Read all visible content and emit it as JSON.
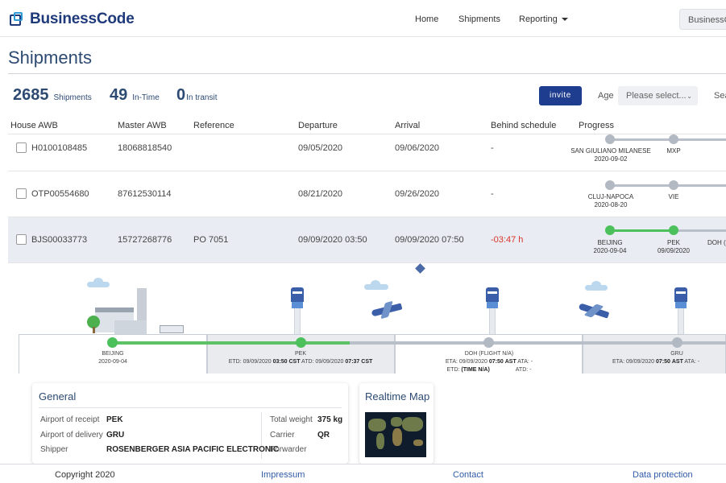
{
  "brand": {
    "name": "BusinessCode"
  },
  "nav": {
    "home": "Home",
    "shipments": "Shipments",
    "reporting": "Reporting",
    "account": "BusinessCode"
  },
  "page": {
    "title": "Shipments"
  },
  "stats": [
    {
      "value": "2685",
      "label": "Shipments"
    },
    {
      "value": "49",
      "label": "In-Time"
    },
    {
      "value": "0",
      "label": "In transit"
    }
  ],
  "toolbar": {
    "invite": "invite",
    "age_label": "Age",
    "age_placeholder": "Please select...",
    "search_label": "Sea"
  },
  "table": {
    "headers": [
      "House AWB",
      "Master AWB",
      "Reference",
      "Departure",
      "Arrival",
      "Behind schedule",
      "Progress"
    ],
    "rows": [
      {
        "house": "H0100108485",
        "master": "18068818540",
        "reference": "",
        "departure": "09/05/2020",
        "arrival": "09/06/2020",
        "behind": "-",
        "stops": [
          {
            "name": "SAN GIULIANO MILANESE",
            "date": "2020-09-02"
          },
          {
            "name": "MXP",
            "date": ""
          }
        ]
      },
      {
        "house": "OTP00554680",
        "master": "87612530114",
        "reference": "",
        "departure": "08/21/2020",
        "arrival": "09/26/2020",
        "behind": "-",
        "stops": [
          {
            "name": "CLUJ-NAPOCA",
            "date": "2020-08-20"
          },
          {
            "name": "VIE",
            "date": ""
          }
        ]
      },
      {
        "house": "BJS00033773",
        "master": "15727268776",
        "reference": "PO 7051",
        "departure": "09/09/2020 03:50",
        "arrival": "09/09/2020 07:50",
        "behind": "-03:47 h",
        "stops": [
          {
            "name": "BEIJING",
            "date": "2020-09-04"
          },
          {
            "name": "PEK",
            "date": "09/09/2020"
          },
          {
            "name": "DOH (",
            "date": ""
          }
        ]
      }
    ]
  },
  "timeline": {
    "beijing": {
      "name": "BEIJING",
      "date": "2020-09-04"
    },
    "pek": {
      "name": "PEK",
      "etd_label": "ETD: 09/09/2020",
      "etd_time": "03:50",
      "etd_tz": "CST",
      "atd_label": "ATD: 09/09/2020",
      "atd_time": "07:37",
      "atd_tz": "CST"
    },
    "doh": {
      "name": "DOH (FLIGHT N/A)",
      "eta_label": "ETA: 09/09/2020",
      "eta_time": "07:50",
      "eta_tz": "AST",
      "ata_label": "ATA: -",
      "etd_label": "ETD:",
      "etd_val": "(TIME N/A)",
      "atd_label": "ATD: -"
    },
    "gru": {
      "name": "GRU",
      "eta_label": "ETA: 09/09/2020",
      "eta_time": "07:50",
      "eta_tz": "AST",
      "ata_label": "ATA: -"
    }
  },
  "general": {
    "title": "General",
    "airport_of_receipt_label": "Airport of receipt",
    "airport_of_receipt": "PEK",
    "airport_of_delivery_label": "Airport of delivery",
    "airport_of_delivery": "GRU",
    "shipper_label": "Shipper",
    "shipper": "ROSENBERGER ASIA PACIFIC ELECTRONIC",
    "total_weight_label": "Total weight",
    "total_weight": "375 kg",
    "carrier_label": "Carrier",
    "carrier": "QR",
    "forwarder_label": "Forwarder"
  },
  "realtime_map": {
    "title": "Realtime Map"
  },
  "footer": {
    "copyright": "Copyright 2020",
    "impressum": "Impressum",
    "contact": "Contact",
    "data_protection": "Data protection"
  },
  "colors": {
    "brand": "#1f3a7a",
    "accent_green": "#4cc05a",
    "behind_red": "#d9352a",
    "button": "#1f3d8f"
  }
}
